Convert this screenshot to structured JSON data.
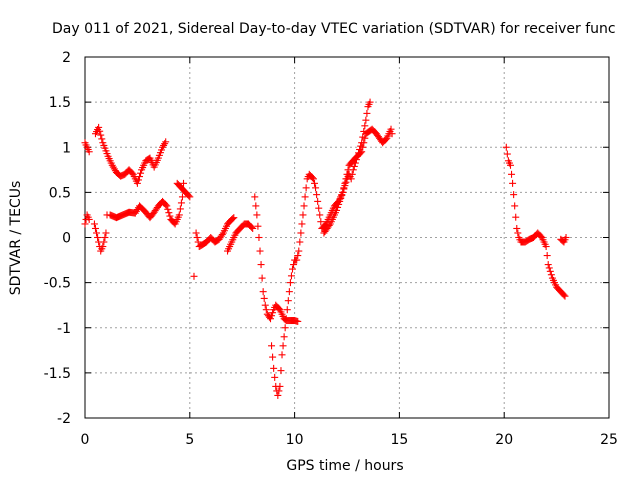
{
  "chart_data": {
    "type": "scatter",
    "title": "Day 011 of 2021, Sidereal Day-to-day VTEC variation (SDTVAR) for receiver func",
    "xlabel": "GPS time / hours",
    "ylabel": "SDTVAR / TECUs",
    "xlim": [
      0,
      25
    ],
    "ylim": [
      -2,
      2
    ],
    "xticks": [
      "0",
      "5",
      "10",
      "15",
      "20",
      "25"
    ],
    "yticks": [
      "-2",
      "-1.5",
      "-1",
      "-0.5",
      "0",
      "0.5",
      "1",
      "1.5",
      "2"
    ],
    "grid": true,
    "marker": "+",
    "color": "#ff0000",
    "series": [
      {
        "segments": [
          [
            [
              0.0,
              1.05
            ],
            [
              0.1,
              1.0
            ],
            [
              0.2,
              0.95
            ]
          ],
          [
            [
              0.0,
              0.15
            ],
            [
              0.1,
              0.25
            ],
            [
              0.2,
              0.2
            ]
          ],
          [
            [
              0.45,
              0.15
            ],
            [
              0.6,
              0.0
            ],
            [
              0.75,
              -0.15
            ],
            [
              0.85,
              -0.1
            ],
            [
              1.0,
              0.05
            ],
            [
              1.05,
              0.25
            ]
          ],
          [
            [
              0.5,
              1.15
            ],
            [
              0.65,
              1.22
            ],
            [
              0.85,
              1.05
            ],
            [
              1.1,
              0.9
            ],
            [
              1.3,
              0.8
            ],
            [
              1.5,
              0.72
            ],
            [
              1.7,
              0.68
            ],
            [
              1.9,
              0.7
            ],
            [
              2.1,
              0.75
            ],
            [
              2.3,
              0.7
            ],
            [
              2.5,
              0.6
            ],
            [
              2.7,
              0.75
            ],
            [
              2.9,
              0.85
            ],
            [
              3.1,
              0.88
            ],
            [
              3.3,
              0.78
            ],
            [
              3.5,
              0.88
            ],
            [
              3.7,
              1.0
            ],
            [
              3.85,
              1.06
            ]
          ],
          [
            [
              1.2,
              0.25
            ],
            [
              1.5,
              0.22
            ],
            [
              1.8,
              0.25
            ],
            [
              2.1,
              0.28
            ],
            [
              2.4,
              0.27
            ],
            [
              2.6,
              0.35
            ],
            [
              2.9,
              0.28
            ],
            [
              3.1,
              0.22
            ],
            [
              3.3,
              0.28
            ],
            [
              3.5,
              0.35
            ],
            [
              3.7,
              0.4
            ],
            [
              3.9,
              0.35
            ],
            [
              4.1,
              0.2
            ],
            [
              4.3,
              0.15
            ],
            [
              4.5,
              0.25
            ],
            [
              4.65,
              0.45
            ],
            [
              4.7,
              0.6
            ]
          ],
          [
            [
              4.4,
              0.6
            ],
            [
              4.6,
              0.55
            ],
            [
              4.8,
              0.5
            ],
            [
              5.0,
              0.45
            ]
          ],
          [
            [
              5.2,
              -0.43
            ]
          ],
          [
            [
              5.3,
              0.05
            ],
            [
              5.45,
              -0.1
            ],
            [
              5.6,
              -0.08
            ],
            [
              5.8,
              -0.05
            ],
            [
              6.0,
              0.0
            ],
            [
              6.2,
              -0.05
            ],
            [
              6.4,
              -0.02
            ],
            [
              6.6,
              0.05
            ],
            [
              6.8,
              0.15
            ],
            [
              7.0,
              0.2
            ],
            [
              7.1,
              0.22
            ]
          ],
          [
            [
              6.8,
              -0.15
            ],
            [
              7.0,
              -0.05
            ],
            [
              7.2,
              0.05
            ],
            [
              7.4,
              0.1
            ],
            [
              7.6,
              0.15
            ],
            [
              7.8,
              0.15
            ],
            [
              8.0,
              0.1
            ]
          ],
          [
            [
              8.1,
              0.45
            ],
            [
              8.2,
              0.25
            ],
            [
              8.3,
              0.0
            ],
            [
              8.4,
              -0.3
            ],
            [
              8.5,
              -0.6
            ],
            [
              8.6,
              -0.75
            ],
            [
              8.7,
              -0.85
            ],
            [
              8.85,
              -0.9
            ],
            [
              9.0,
              -0.8
            ],
            [
              9.1,
              -0.75
            ],
            [
              9.3,
              -0.8
            ],
            [
              9.4,
              -0.85
            ],
            [
              9.5,
              -0.9
            ],
            [
              9.6,
              -0.92
            ],
            [
              9.8,
              -0.92
            ],
            [
              10.0,
              -0.92
            ],
            [
              10.15,
              -0.93
            ]
          ],
          [
            [
              8.9,
              -1.2
            ],
            [
              9.0,
              -1.45
            ],
            [
              9.1,
              -1.65
            ],
            [
              9.2,
              -1.75
            ],
            [
              9.3,
              -1.65
            ],
            [
              9.4,
              -1.3
            ],
            [
              9.5,
              -1.1
            ],
            [
              9.6,
              -0.9
            ],
            [
              9.7,
              -0.7
            ],
            [
              9.8,
              -0.5
            ],
            [
              9.9,
              -0.35
            ],
            [
              10.0,
              -0.25
            ],
            [
              10.1,
              -0.25
            ],
            [
              10.2,
              -0.15
            ],
            [
              10.3,
              0.05
            ],
            [
              10.4,
              0.25
            ],
            [
              10.5,
              0.45
            ],
            [
              10.6,
              0.65
            ],
            [
              10.7,
              0.7
            ],
            [
              10.9,
              0.65
            ],
            [
              11.0,
              0.55
            ],
            [
              11.1,
              0.4
            ],
            [
              11.2,
              0.25
            ],
            [
              11.3,
              0.1
            ],
            [
              11.5,
              0.15
            ],
            [
              11.7,
              0.25
            ],
            [
              11.9,
              0.35
            ],
            [
              12.1,
              0.4
            ],
            [
              12.3,
              0.5
            ],
            [
              12.5,
              0.65
            ],
            [
              12.6,
              0.7
            ],
            [
              12.7,
              0.65
            ],
            [
              12.8,
              0.75
            ],
            [
              13.0,
              0.9
            ],
            [
              13.2,
              1.05
            ],
            [
              13.4,
              1.3
            ],
            [
              13.5,
              1.45
            ],
            [
              13.6,
              1.5
            ]
          ],
          [
            [
              11.4,
              0.05
            ],
            [
              11.7,
              0.15
            ],
            [
              12.0,
              0.3
            ],
            [
              12.3,
              0.5
            ],
            [
              12.6,
              0.8
            ],
            [
              12.9,
              0.88
            ],
            [
              13.2,
              0.95
            ],
            [
              13.4,
              1.15
            ],
            [
              13.7,
              1.2
            ],
            [
              13.9,
              1.15
            ],
            [
              14.2,
              1.05
            ],
            [
              14.4,
              1.1
            ],
            [
              14.5,
              1.15
            ],
            [
              14.6,
              1.2
            ],
            [
              14.65,
              1.15
            ]
          ],
          [
            [
              20.1,
              1.0
            ],
            [
              20.2,
              0.85
            ],
            [
              20.3,
              0.8
            ],
            [
              20.4,
              0.6
            ],
            [
              20.5,
              0.35
            ],
            [
              20.6,
              0.1
            ],
            [
              20.7,
              0.0
            ],
            [
              20.8,
              -0.05
            ],
            [
              21.0,
              -0.05
            ],
            [
              21.2,
              -0.02
            ],
            [
              21.4,
              0.0
            ],
            [
              21.6,
              0.05
            ],
            [
              21.8,
              0.0
            ],
            [
              22.0,
              -0.1
            ],
            [
              22.1,
              -0.3
            ],
            [
              22.3,
              -0.45
            ],
            [
              22.5,
              -0.55
            ],
            [
              22.7,
              -0.6
            ],
            [
              22.9,
              -0.65
            ]
          ],
          [
            [
              22.7,
              -0.02
            ],
            [
              22.85,
              -0.05
            ],
            [
              22.95,
              0.0
            ]
          ]
        ]
      }
    ]
  }
}
